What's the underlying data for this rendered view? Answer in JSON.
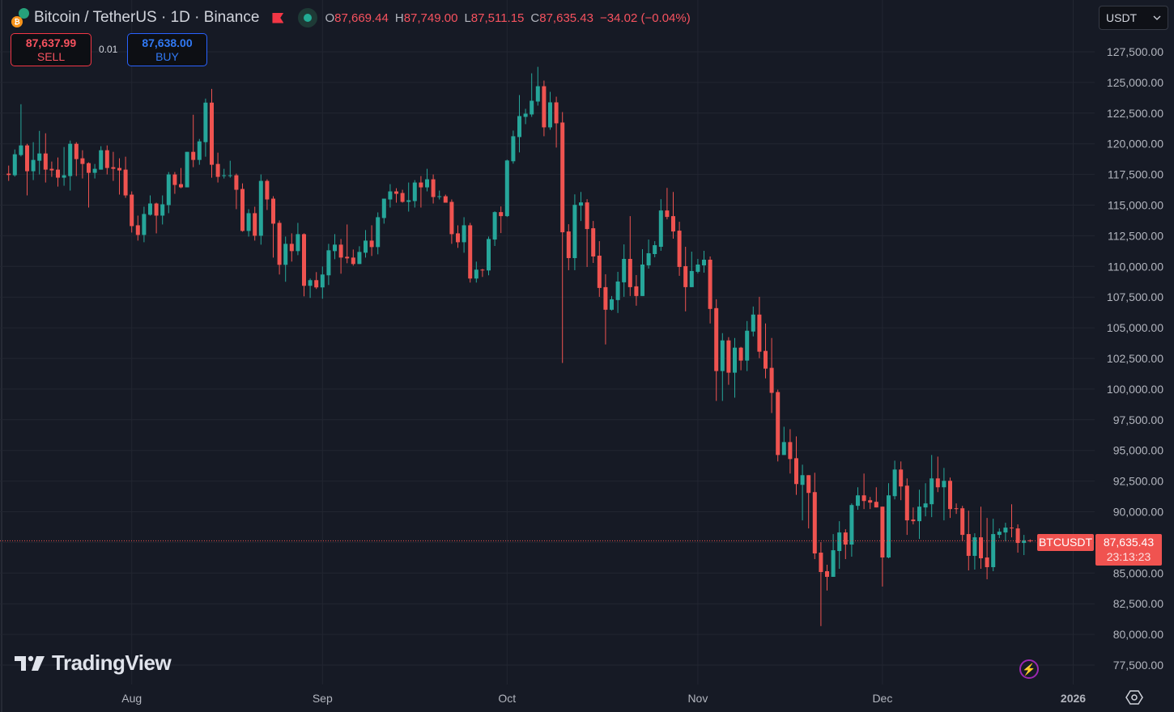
{
  "header": {
    "title": "Bitcoin / TetherUS · 1D · Binance",
    "ohlc": {
      "o_label": "O",
      "o": "87,669.44",
      "h_label": "H",
      "h": "87,749.00",
      "l_label": "L",
      "l": "87,511.15",
      "c_label": "C",
      "c": "87,635.43",
      "change": "−34.02 (−0.04%)"
    }
  },
  "trade": {
    "sell_price": "87,637.99",
    "sell_label": "SELL",
    "spread": "0.01",
    "buy_price": "87,638.00",
    "buy_label": "BUY"
  },
  "currency_select": "USDT",
  "brand": "TradingView",
  "last_price": {
    "symbol": "BTCUSDT",
    "price": "87,635.43",
    "countdown": "23:13:23"
  },
  "colors": {
    "up": "#26a69a",
    "down": "#ef5350",
    "background": "#161a25",
    "grid": "#222631"
  },
  "chart_data": {
    "type": "candlestick",
    "symbol": "BTCUSDT",
    "interval": "1D",
    "ylim": [
      76000,
      131700
    ],
    "y_ticks": [
      77500,
      80000,
      82500,
      85000,
      87500,
      90000,
      92500,
      95000,
      97500,
      100000,
      102500,
      105000,
      107500,
      110000,
      112500,
      115000,
      117500,
      120000,
      122500,
      125000,
      127500
    ],
    "y_tick_labels": [
      "77,500.00",
      "80,000.00",
      "82,500.00",
      "85,000.00",
      "",
      "90,000.00",
      "92,500.00",
      "95,000.00",
      "97,500.00",
      "100,000.00",
      "102,500.00",
      "105,000.00",
      "107,500.00",
      "110,000.00",
      "112,500.00",
      "115,000.00",
      "117,500.00",
      "120,000.00",
      "122,500.00",
      "125,000.00",
      "127,500.00"
    ],
    "x_ticks": [
      {
        "label": "Aug",
        "index": 20
      },
      {
        "label": "Sep",
        "index": 51
      },
      {
        "label": "Oct",
        "index": 81
      },
      {
        "label": "Nov",
        "index": 112
      },
      {
        "label": "Dec",
        "index": 142
      },
      {
        "label": "2026",
        "index": 173
      }
    ],
    "candle_fields": [
      "open",
      "high",
      "low",
      "close"
    ],
    "candles": [
      [
        117566,
        118224,
        116974,
        117456
      ],
      [
        117434,
        119539,
        117324,
        119145
      ],
      [
        119079,
        123224,
        118969,
        119868
      ],
      [
        119868,
        120000,
        115789,
        117763
      ],
      [
        117763,
        120131,
        117039,
        118684
      ],
      [
        118618,
        121052,
        117500,
        119210
      ],
      [
        119210,
        120855,
        116842,
        117894
      ],
      [
        117960,
        118552,
        117302,
        117829
      ],
      [
        117894,
        118881,
        116513,
        117237
      ],
      [
        117237,
        119737,
        116579,
        117434
      ],
      [
        117368,
        120263,
        116184,
        120000
      ],
      [
        120000,
        120131,
        117368,
        118750
      ],
      [
        118816,
        119473,
        117171,
        118355
      ],
      [
        118421,
        118487,
        114802,
        117631
      ],
      [
        117631,
        118355,
        117171,
        117960
      ],
      [
        117894,
        119802,
        117894,
        119473
      ],
      [
        119473,
        119868,
        117500,
        118026
      ],
      [
        118092,
        119342,
        116974,
        117960
      ],
      [
        118026,
        118816,
        115855,
        117829
      ],
      [
        117894,
        118947,
        115592,
        115789
      ],
      [
        115855,
        116118,
        112763,
        113289
      ],
      [
        113355,
        114144,
        112105,
        112566
      ],
      [
        112566,
        114868,
        111973,
        114276
      ],
      [
        114210,
        115789,
        114144,
        115131
      ],
      [
        115131,
        115197,
        112697,
        114144
      ],
      [
        114144,
        115789,
        113421,
        115066
      ],
      [
        115000,
        117697,
        114342,
        117500
      ],
      [
        117500,
        117697,
        115921,
        116644
      ],
      [
        116710,
        118026,
        116381,
        116447
      ],
      [
        116447,
        119342,
        116447,
        119342
      ],
      [
        119342,
        122368,
        118092,
        118684
      ],
      [
        118684,
        120394,
        118289,
        120197
      ],
      [
        120131,
        123684,
        118947,
        123355
      ],
      [
        123355,
        124473,
        117237,
        118289
      ],
      [
        118355,
        119276,
        116842,
        117302
      ],
      [
        117390,
        117960,
        117171,
        117434
      ],
      [
        117390,
        118618,
        117237,
        117434
      ],
      [
        117434,
        117566,
        114671,
        116250
      ],
      [
        116316,
        116776,
        112829,
        112894
      ],
      [
        112894,
        114671,
        112434,
        114342
      ],
      [
        114342,
        114868,
        112105,
        112500
      ],
      [
        112500,
        117500,
        111776,
        116974
      ],
      [
        116974,
        117105,
        114605,
        115460
      ],
      [
        115526,
        115723,
        110723,
        113487
      ],
      [
        113552,
        113750,
        109342,
        110131
      ],
      [
        110131,
        112434,
        108750,
        111842
      ],
      [
        111842,
        112697,
        110394,
        111250
      ],
      [
        111250,
        113552,
        110921,
        112631
      ],
      [
        112631,
        112697,
        107565,
        108421
      ],
      [
        108421,
        109013,
        107434,
        108881
      ],
      [
        108881,
        109539,
        108158,
        108289
      ],
      [
        108289,
        110000,
        107368,
        109342
      ],
      [
        109276,
        111842,
        108487,
        111316
      ],
      [
        111250,
        112631,
        110592,
        111776
      ],
      [
        111776,
        112237,
        109408,
        110723
      ],
      [
        110789,
        113421,
        110263,
        110658
      ],
      [
        110723,
        111381,
        110066,
        110197
      ],
      [
        110197,
        111645,
        110197,
        111184
      ],
      [
        111118,
        112960,
        110723,
        112105
      ],
      [
        112105,
        113355,
        110855,
        111579
      ],
      [
        111579,
        114408,
        110987,
        114013
      ],
      [
        113947,
        115526,
        113487,
        115526
      ],
      [
        115460,
        116710,
        114802,
        116118
      ],
      [
        116118,
        116381,
        115197,
        115921
      ],
      [
        115987,
        116250,
        115197,
        115263
      ],
      [
        115263,
        116842,
        114473,
        115395
      ],
      [
        115329,
        117039,
        114802,
        116842
      ],
      [
        116842,
        117368,
        114802,
        116447
      ],
      [
        116447,
        117960,
        116118,
        117105
      ],
      [
        117105,
        117500,
        115131,
        115658
      ],
      [
        115658,
        116184,
        115460,
        115723
      ],
      [
        115723,
        115855,
        115197,
        115197
      ],
      [
        115263,
        115460,
        111842,
        112631
      ],
      [
        112697,
        113355,
        111513,
        111973
      ],
      [
        111973,
        114013,
        111118,
        113355
      ],
      [
        113355,
        113552,
        108684,
        109013
      ],
      [
        109013,
        110394,
        108684,
        109737
      ],
      [
        109737,
        109802,
        109144,
        109671
      ],
      [
        109671,
        112434,
        109276,
        112237
      ],
      [
        112193,
        114496,
        111667,
        114430
      ],
      [
        114430,
        114890,
        112719,
        114101
      ],
      [
        114101,
        118706,
        114035,
        118640
      ],
      [
        118575,
        121075,
        118377,
        120614
      ],
      [
        120548,
        123969,
        119298,
        122259
      ],
      [
        122193,
        122851,
        121601,
        122456
      ],
      [
        122390,
        125746,
        122193,
        123509
      ],
      [
        123443,
        126272,
        123114,
        124693
      ],
      [
        124693,
        125154,
        120614,
        121338
      ],
      [
        121338,
        124233,
        121140,
        123377
      ],
      [
        123377,
        123838,
        119693,
        121667
      ],
      [
        121733,
        122588,
        102127,
        112785
      ],
      [
        112851,
        113443,
        109693,
        110680
      ],
      [
        110680,
        115877,
        109693,
        115022
      ],
      [
        114956,
        116075,
        113706,
        115219
      ],
      [
        115219,
        115483,
        109956,
        113048
      ],
      [
        113114,
        113706,
        110285,
        110811
      ],
      [
        110877,
        112061,
        107522,
        108246
      ],
      [
        108311,
        109364,
        103640,
        106469
      ],
      [
        106469,
        107588,
        106404,
        107325
      ],
      [
        107259,
        109561,
        106206,
        108772
      ],
      [
        108706,
        111798,
        107522,
        110614
      ],
      [
        110614,
        114101,
        107588,
        108311
      ],
      [
        108377,
        109298,
        106798,
        107588
      ],
      [
        107588,
        111404,
        107588,
        110154
      ],
      [
        110088,
        112193,
        109825,
        111075
      ],
      [
        111009,
        112061,
        110746,
        111733
      ],
      [
        111601,
        115483,
        111272,
        114562
      ],
      [
        114562,
        116404,
        113838,
        114035
      ],
      [
        114101,
        116075,
        112259,
        112851
      ],
      [
        112917,
        113641,
        109233,
        109957
      ],
      [
        110022,
        111601,
        106338,
        108312
      ],
      [
        108312,
        111207,
        108312,
        109628
      ],
      [
        109562,
        110614,
        109430,
        110154
      ],
      [
        110088,
        111272,
        109496,
        110549
      ],
      [
        110549,
        110812,
        105351,
        106535
      ],
      [
        106601,
        107325,
        99035,
        101470
      ],
      [
        101470,
        104562,
        99035,
        103970
      ],
      [
        103970,
        104233,
        100351,
        101338
      ],
      [
        101338,
        104167,
        99299,
        103378
      ],
      [
        103378,
        103443,
        101535,
        102325
      ],
      [
        102325,
        105549,
        101470,
        104759
      ],
      [
        104693,
        106733,
        104299,
        106075
      ],
      [
        106075,
        107522,
        102522,
        103049
      ],
      [
        103114,
        105351,
        100877,
        101667
      ],
      [
        101733,
        104167,
        98049,
        99693
      ],
      [
        99759,
        99956,
        94101,
        94627
      ],
      [
        94627,
        96930,
        94627,
        95680
      ],
      [
        95680,
        96733,
        93114,
        94298
      ],
      [
        94364,
        96141,
        91380,
        92259
      ],
      [
        92193,
        93837,
        89298,
        92982
      ],
      [
        92982,
        92982,
        88640,
        91535
      ],
      [
        91601,
        93180,
        86140,
        86601
      ],
      [
        86666,
        87522,
        80679,
        85087
      ],
      [
        85153,
        85680,
        83574,
        84693
      ],
      [
        84693,
        88180,
        84693,
        86864
      ],
      [
        86798,
        89232,
        85351,
        88311
      ],
      [
        88311,
        88574,
        86140,
        87324
      ],
      [
        87324,
        90680,
        86337,
        90548
      ],
      [
        90482,
        91995,
        90153,
        91337
      ],
      [
        91337,
        93114,
        90219,
        90877
      ],
      [
        90943,
        91206,
        90219,
        90745
      ],
      [
        90811,
        91995,
        90351,
        90351
      ],
      [
        90416,
        90416,
        83903,
        86272
      ],
      [
        86272,
        92324,
        86206,
        91337
      ],
      [
        91272,
        94166,
        91008,
        93443
      ],
      [
        93443,
        94101,
        90943,
        92061
      ],
      [
        92127,
        92719,
        88114,
        89298
      ],
      [
        89364,
        90351,
        88969,
        89232
      ],
      [
        89232,
        91798,
        87785,
        90416
      ],
      [
        90351,
        92324,
        89627,
        90680
      ],
      [
        90614,
        94627,
        89561,
        92719
      ],
      [
        92719,
        94495,
        91601,
        91995
      ],
      [
        91995,
        93574,
        89298,
        92522
      ],
      [
        92522,
        92785,
        89495,
        90219
      ],
      [
        90285,
        90680,
        89824,
        90219
      ],
      [
        90285,
        90482,
        87587,
        88114
      ],
      [
        88180,
        90087,
        85219,
        86403
      ],
      [
        86403,
        88245,
        85285,
        87916
      ],
      [
        87916,
        90416,
        85351,
        86206
      ],
      [
        86272,
        89495,
        84495,
        85482
      ],
      [
        85482,
        89430,
        85153,
        88180
      ],
      [
        88114,
        88640,
        87851,
        88377
      ],
      [
        88311,
        89101,
        87587,
        88706
      ],
      [
        88706,
        90614,
        87916,
        88640
      ],
      [
        88640,
        88969,
        86666,
        87456
      ],
      [
        87456,
        88114,
        86469,
        87669.45
      ],
      [
        87669.44,
        87749,
        87511.15,
        87635.43
      ]
    ],
    "last_close": 87635.43
  }
}
